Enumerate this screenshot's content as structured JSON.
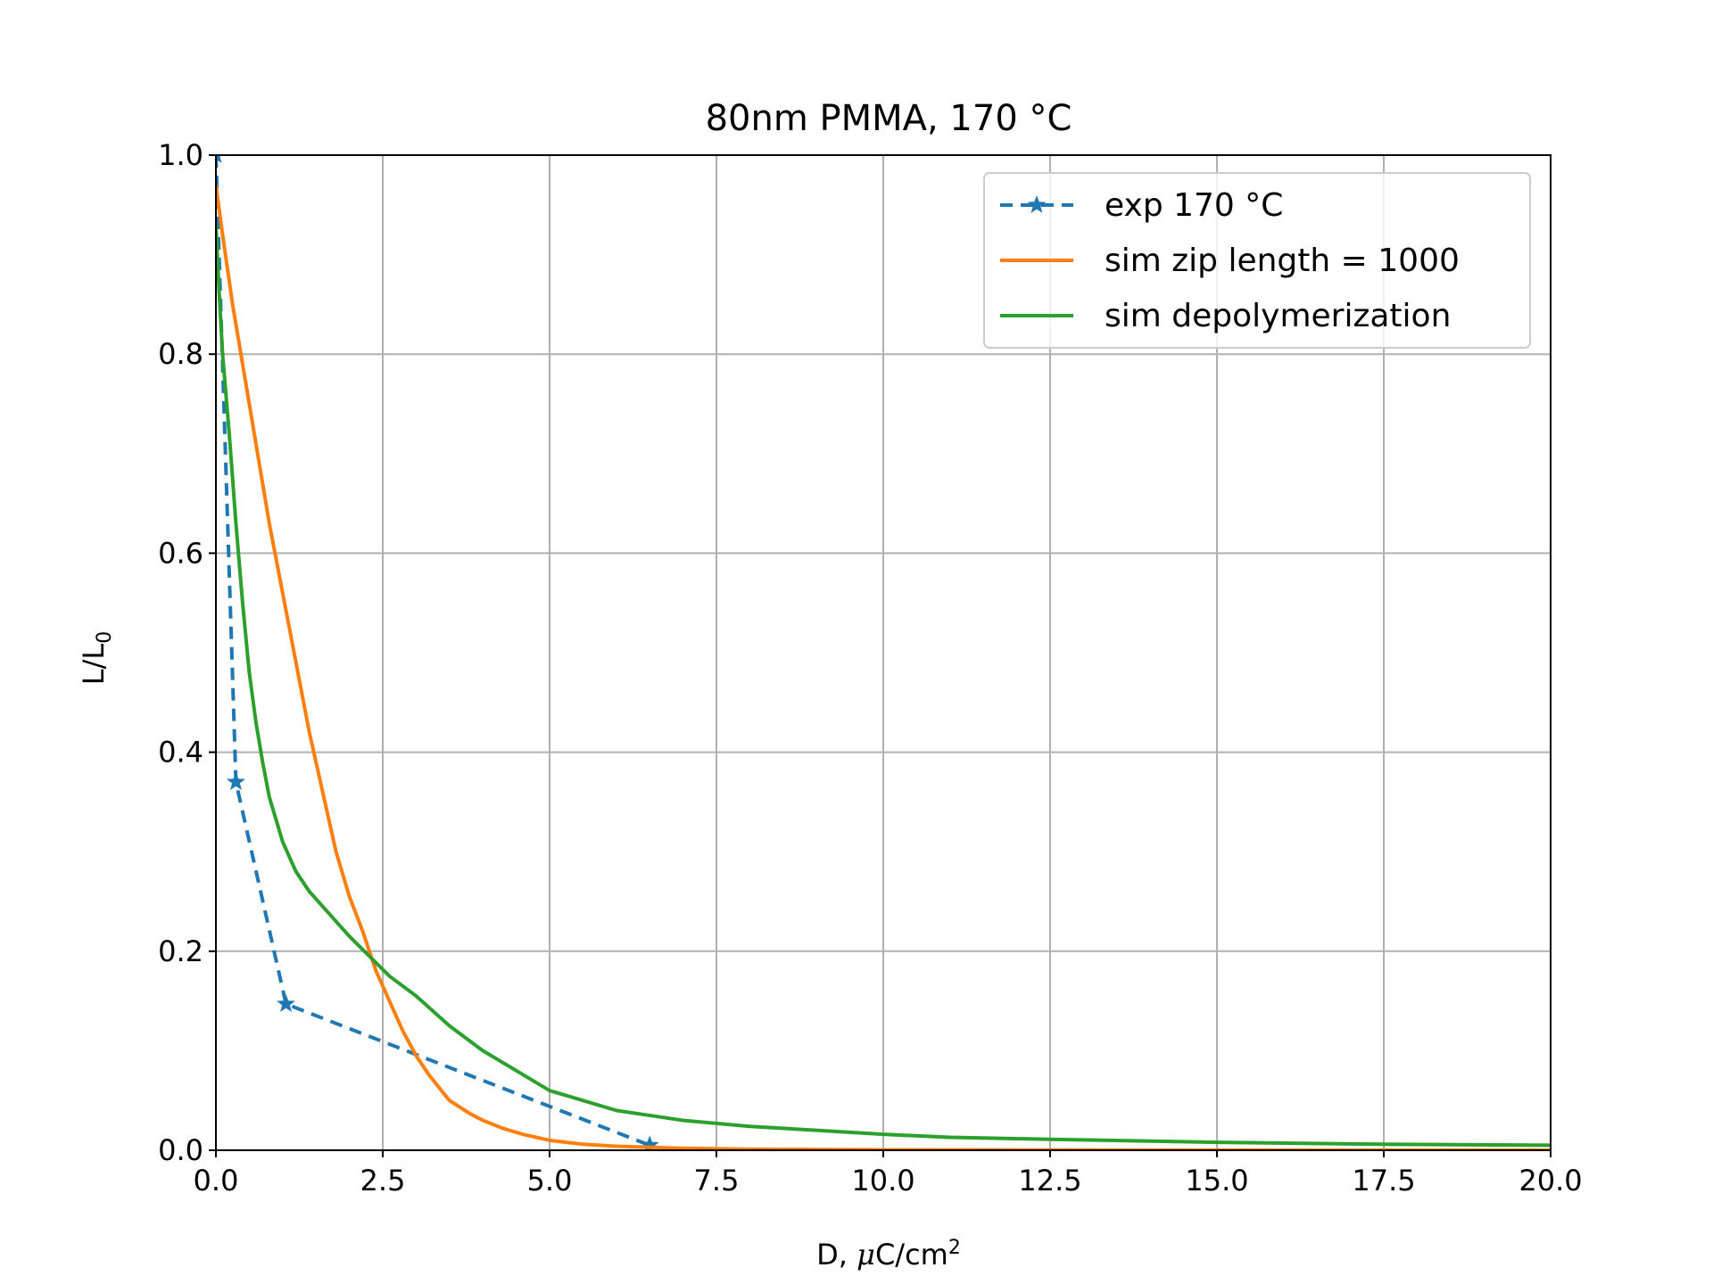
{
  "chart_data": {
    "type": "line",
    "title": "80nm PMMA, 170 °C",
    "xlabel_prefix": "D, ",
    "xlabel_mu": "μ",
    "xlabel_unit": "C/cm",
    "xlabel_sup": "2",
    "ylabel_main": "L/L",
    "ylabel_sub": "0",
    "xlim": [
      0,
      20
    ],
    "ylim": [
      0,
      1
    ],
    "grid": true,
    "legend_position": "top-right",
    "xticks": [
      "0.0",
      "2.5",
      "5.0",
      "7.5",
      "10.0",
      "12.5",
      "15.0",
      "17.5",
      "20.0"
    ],
    "yticks": [
      "0.0",
      "0.2",
      "0.4",
      "0.6",
      "0.8",
      "1.0"
    ],
    "series": [
      {
        "name": "exp 170 °C",
        "color": "#1f77b4",
        "style": "dashed",
        "marker": "star",
        "x": [
          0.0,
          0.3,
          1.05,
          6.5
        ],
        "y": [
          1.0,
          0.37,
          0.147,
          0.005
        ]
      },
      {
        "name": "sim zip length = 1000",
        "color": "#ff7f0e",
        "style": "solid",
        "marker": "none",
        "x": [
          0.0,
          0.1,
          0.25,
          0.4,
          0.6,
          0.8,
          1.0,
          1.2,
          1.4,
          1.6,
          1.8,
          2.0,
          2.2,
          2.4,
          2.6,
          2.8,
          3.0,
          3.2,
          3.5,
          3.8,
          4.0,
          4.3,
          4.6,
          5.0,
          5.5,
          6.0,
          6.5,
          7.0,
          8.0,
          9.0,
          10.0,
          12.5,
          15.0,
          20.0
        ],
        "y": [
          0.97,
          0.92,
          0.85,
          0.79,
          0.71,
          0.63,
          0.56,
          0.49,
          0.42,
          0.36,
          0.3,
          0.255,
          0.22,
          0.18,
          0.15,
          0.12,
          0.095,
          0.075,
          0.05,
          0.037,
          0.03,
          0.022,
          0.016,
          0.01,
          0.006,
          0.004,
          0.003,
          0.002,
          0.001,
          0.0008,
          0.0005,
          0.0003,
          0.0002,
          0.0001
        ]
      },
      {
        "name": "sim depolymerization",
        "color": "#2ca02c",
        "style": "solid",
        "marker": "none",
        "x": [
          0.0,
          0.05,
          0.1,
          0.2,
          0.3,
          0.4,
          0.5,
          0.6,
          0.7,
          0.8,
          1.0,
          1.2,
          1.4,
          1.6,
          1.8,
          2.0,
          2.3,
          2.6,
          3.0,
          3.5,
          4.0,
          4.5,
          5.0,
          5.5,
          6.0,
          6.5,
          7.0,
          7.5,
          8.0,
          9.0,
          10.0,
          11.0,
          12.5,
          15.0,
          17.5,
          20.0
        ],
        "y": [
          0.93,
          0.86,
          0.8,
          0.72,
          0.63,
          0.55,
          0.48,
          0.43,
          0.39,
          0.355,
          0.31,
          0.28,
          0.26,
          0.245,
          0.23,
          0.215,
          0.195,
          0.175,
          0.155,
          0.125,
          0.1,
          0.08,
          0.06,
          0.05,
          0.04,
          0.035,
          0.03,
          0.027,
          0.024,
          0.02,
          0.016,
          0.013,
          0.011,
          0.008,
          0.006,
          0.005
        ]
      }
    ]
  }
}
